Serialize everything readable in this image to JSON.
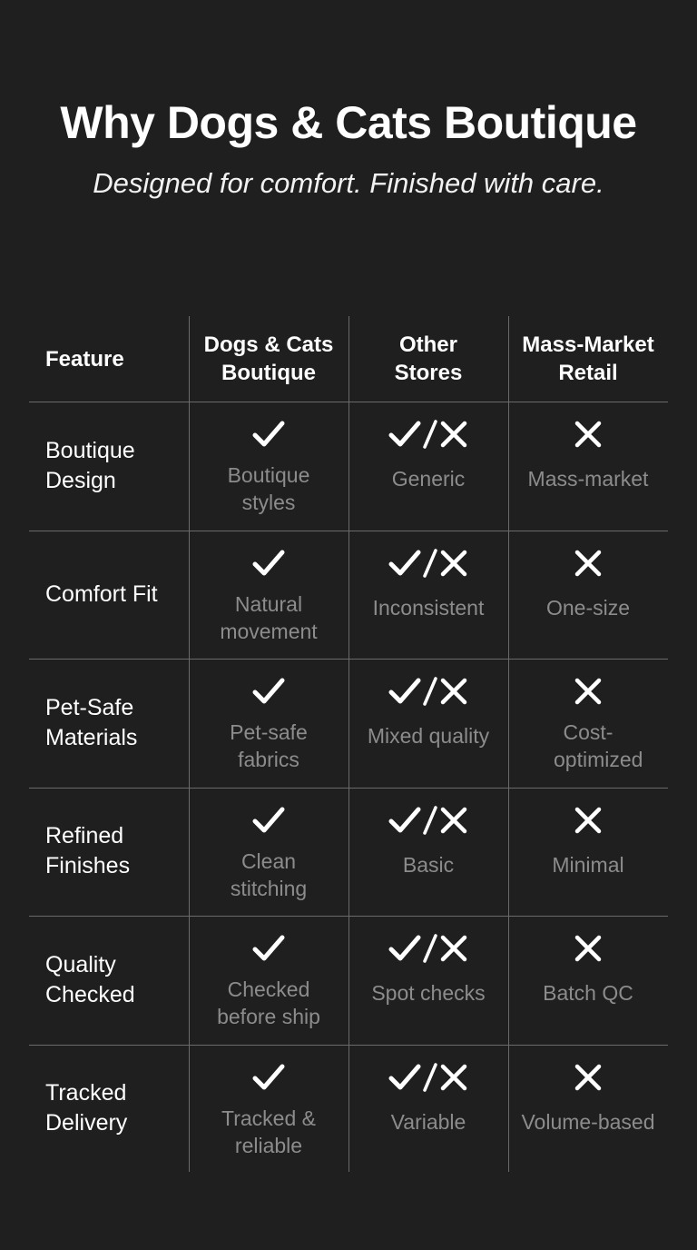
{
  "title": "Why Dogs & Cats Boutique",
  "subtitle": "Designed for comfort. Finished with care.",
  "table": {
    "headers": [
      "Feature",
      "Dogs & Cats Boutique",
      "Other Stores",
      "Mass-Market Retail"
    ],
    "marks": {
      "boutique": "check-icon",
      "other": "check-slash-x-icon",
      "mass": "x-icon"
    },
    "rows": [
      {
        "feature": "Boutique Design",
        "boutique": "Boutique styles",
        "other": "Generic",
        "mass": "Mass-market"
      },
      {
        "feature": "Comfort Fit",
        "boutique": "Natural movement",
        "other": "Inconsistent",
        "mass": "One-size"
      },
      {
        "feature": "Pet-Safe Materials",
        "boutique": "Pet-safe fabrics",
        "other": "Mixed quality",
        "mass": "Cost-optimized"
      },
      {
        "feature": "Refined Finishes",
        "boutique": "Clean stitching",
        "other": "Basic",
        "mass": "Minimal"
      },
      {
        "feature": "Quality Checked",
        "boutique": "Checked before ship",
        "other": "Spot checks",
        "mass": "Batch QC"
      },
      {
        "feature": "Tracked Delivery",
        "boutique": "Tracked & reliable",
        "other": "Variable",
        "mass": "Volume-based"
      }
    ]
  },
  "colors": {
    "background": "#1f1f1f",
    "text": "#ffffff",
    "muted": "#8c8c8c",
    "grid": "#6a6a6a"
  }
}
